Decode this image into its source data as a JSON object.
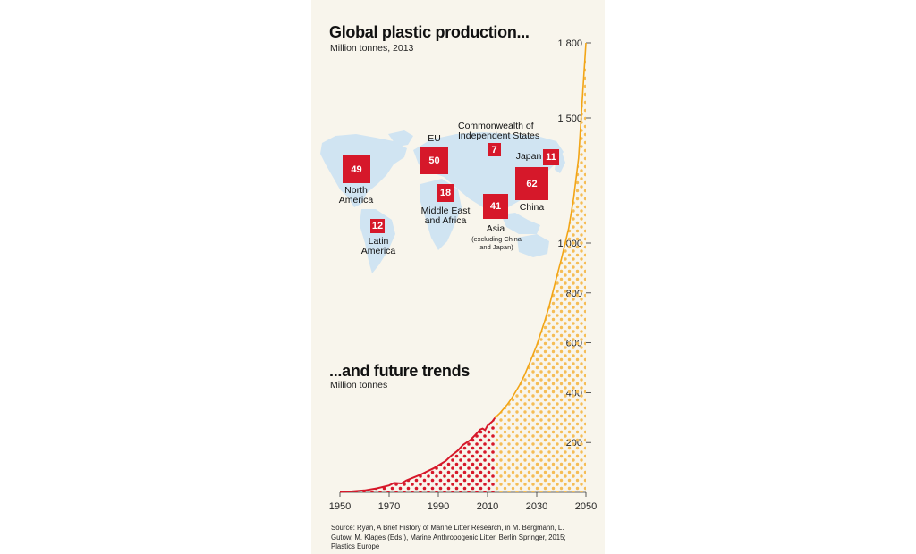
{
  "top": {
    "title": "Global plastic production...",
    "subtitle": "Million tonnes, 2013",
    "regions": [
      {
        "label": "North America",
        "label_lines": [
          "North",
          "America"
        ],
        "value": 49
      },
      {
        "label": "EU",
        "label_lines": [
          "EU"
        ],
        "value": 50
      },
      {
        "label": "Commonwealth of Independent States",
        "label_lines": [
          "Commonwealth of",
          "Independent States"
        ],
        "value": 7
      },
      {
        "label": "Japan",
        "label_lines": [
          "Japan"
        ],
        "value": 11
      },
      {
        "label": "Middle East and Africa",
        "label_lines": [
          "Middle East",
          "and Africa"
        ],
        "value": 18
      },
      {
        "label": "China",
        "label_lines": [
          "China"
        ],
        "value": 62
      },
      {
        "label": "Asia",
        "label_lines": [
          "Asia"
        ],
        "note_lines": [
          "(excluding China",
          "and Japan)"
        ],
        "value": 41
      },
      {
        "label": "Latin America",
        "label_lines": [
          "Latin",
          "America"
        ],
        "value": 12
      }
    ]
  },
  "bottom": {
    "title": "...and future trends",
    "subtitle": "Million tonnes"
  },
  "source": "Source: Ryan, A Brief History of Marine Litter Research, in M. Bergmann, L. Gutow, M. Klages (Eds.), Marine Anthropogenic Litter, Berlin Springer, 2015; Plastics Europe",
  "colors": {
    "historical": "#d6182a",
    "projection": "#f2a516",
    "map": "#d0e4f2",
    "background": "#f8f5ec"
  },
  "chart_data": {
    "type": "area",
    "title": "...and future trends",
    "ylabel": "Million tonnes",
    "xlim": [
      1950,
      2050
    ],
    "x_ticks": [
      1950,
      1970,
      1990,
      2010,
      2030,
      2050
    ],
    "y_ticks": [
      200,
      400,
      600,
      800
    ],
    "y_ticks_upper": [
      1000,
      1500,
      1800
    ],
    "y_tick_labels_upper": [
      "1 000",
      "1 500",
      "1 800"
    ],
    "scale": "linear up to 1 000, compressed above 1 000",
    "series": [
      {
        "kind": "historical",
        "x": [
          1950,
          1955,
          1960,
          1965,
          1970,
          1972,
          1975,
          1977,
          1980,
          1983,
          1985,
          1988,
          1990,
          1993,
          1995,
          1998,
          2000,
          2003,
          2005,
          2007,
          2008,
          2009,
          2010,
          2012,
          2013
        ],
        "y": [
          2,
          4,
          8,
          16,
          28,
          38,
          36,
          48,
          60,
          72,
          82,
          96,
          108,
          126,
          145,
          168,
          190,
          210,
          230,
          252,
          256,
          250,
          268,
          285,
          299
        ]
      },
      {
        "kind": "projection",
        "x": [
          2013,
          2015,
          2018,
          2020,
          2023,
          2025,
          2028,
          2030,
          2033,
          2035,
          2038,
          2040,
          2043,
          2045,
          2047,
          2050
        ],
        "y": [
          299,
          318,
          352,
          380,
          430,
          470,
          540,
          590,
          680,
          745,
          860,
          935,
          1060,
          1180,
          1340,
          1800
        ]
      }
    ]
  }
}
